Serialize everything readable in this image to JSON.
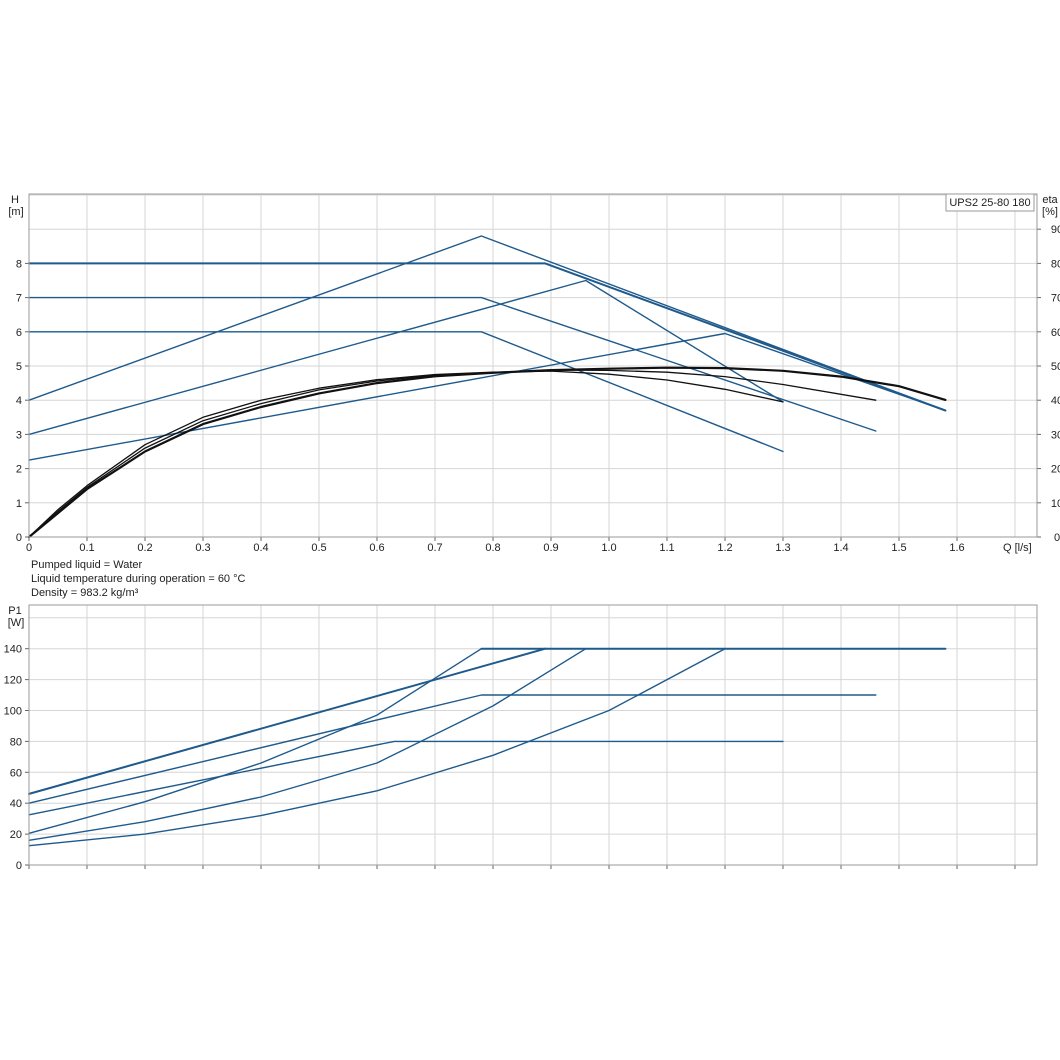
{
  "chart_data": [
    {
      "type": "line",
      "title": "",
      "model_label": "UPS2 25-80 180",
      "xlabel": "Q [l/s]",
      "ylabel_left": [
        "H",
        "[m]"
      ],
      "ylabel_right": [
        "eta",
        "[%]"
      ],
      "xlim": [
        0,
        1.7
      ],
      "ylim_left": [
        0,
        10
      ],
      "ylim_right": [
        0,
        100
      ],
      "x_ticks": [
        "0",
        "0.1",
        "0.2",
        "0.3",
        "0.4",
        "0.5",
        "0.6",
        "0.7",
        "0.8",
        "0.9",
        "1.0",
        "1.1",
        "1.2",
        "1.3",
        "1.4",
        "1.5",
        "1.6"
      ],
      "y_ticks_left": [
        "0",
        "1",
        "2",
        "3",
        "4",
        "5",
        "6",
        "7",
        "8"
      ],
      "y_ticks_right": [
        "0",
        "10",
        "20",
        "30",
        "40",
        "50",
        "60",
        "70",
        "80",
        "90"
      ],
      "grid": true,
      "series": [
        {
          "axis": "left",
          "color": "#1f5a8c",
          "width": 1.4,
          "x": [
            0,
            0.78,
            1.3
          ],
          "y": [
            6,
            6,
            2.5
          ]
        },
        {
          "axis": "left",
          "color": "#1f5a8c",
          "width": 1.4,
          "x": [
            0,
            0.78,
            1.46
          ],
          "y": [
            7,
            7,
            3.1
          ]
        },
        {
          "axis": "left",
          "color": "#1f5a8c",
          "width": 2.0,
          "x": [
            0,
            0.89,
            1.58
          ],
          "y": [
            8,
            8,
            3.7
          ]
        },
        {
          "axis": "left",
          "color": "#1f5a8c",
          "width": 1.4,
          "x": [
            0,
            0.78,
            1.58
          ],
          "y": [
            4,
            8.8,
            3.7
          ]
        },
        {
          "axis": "left",
          "color": "#1f5a8c",
          "width": 1.4,
          "x": [
            0,
            0.96,
            1.3
          ],
          "y": [
            3,
            7.5,
            3.95
          ]
        },
        {
          "axis": "left",
          "color": "#1f5a8c",
          "width": 1.4,
          "x": [
            0,
            1.2,
            1.58
          ],
          "y": [
            2.25,
            5.95,
            3.7
          ]
        },
        {
          "axis": "right",
          "color": "#111111",
          "width": 1.3,
          "x": [
            0,
            0.05,
            0.1,
            0.2,
            0.3,
            0.4,
            0.5,
            0.6,
            0.7,
            0.8,
            0.9,
            1.0,
            1.1,
            1.2,
            1.3
          ],
          "y": [
            0,
            8,
            15,
            27,
            35,
            40,
            43.5,
            46,
            47.5,
            48.2,
            48.5,
            47.6,
            45.9,
            43.2,
            39.5
          ]
        },
        {
          "axis": "right",
          "color": "#111111",
          "width": 1.3,
          "x": [
            0,
            0.05,
            0.1,
            0.2,
            0.3,
            0.4,
            0.5,
            0.6,
            0.7,
            0.8,
            0.9,
            1.0,
            1.1,
            1.2,
            1.3,
            1.46
          ],
          "y": [
            0,
            7.5,
            14.5,
            26,
            34,
            39,
            43,
            45.6,
            47.3,
            48.1,
            48.8,
            48.7,
            48.2,
            46.9,
            44.6,
            40
          ]
        },
        {
          "axis": "right",
          "color": "#111111",
          "width": 2.2,
          "x": [
            0,
            0.05,
            0.1,
            0.2,
            0.3,
            0.4,
            0.5,
            0.6,
            0.7,
            0.8,
            0.9,
            1.0,
            1.1,
            1.2,
            1.3,
            1.4,
            1.5,
            1.58
          ],
          "y": [
            0,
            7,
            14,
            25,
            33,
            38,
            42,
            45,
            47,
            48,
            48.8,
            49.2,
            49.5,
            49.4,
            48.6,
            46.9,
            44.1,
            40.1
          ]
        }
      ]
    },
    {
      "type": "line",
      "title": "",
      "xlabel": "",
      "ylabel": [
        "P1",
        "[W]"
      ],
      "xlim": [
        0,
        1.7
      ],
      "ylim": [
        0,
        160
      ],
      "y_ticks": [
        "0",
        "20",
        "40",
        "60",
        "80",
        "100",
        "120",
        "140"
      ],
      "grid": true,
      "series": [
        {
          "color": "#1f5a8c",
          "width": 1.4,
          "x": [
            0,
            0.2,
            0.4,
            0.6,
            0.78
          ],
          "y": [
            20.5,
            41,
            66,
            97,
            140
          ]
        },
        {
          "color": "#1f5a8c",
          "width": 1.4,
          "x": [
            0,
            0.2,
            0.4,
            0.6,
            0.8,
            0.96
          ],
          "y": [
            16,
            28,
            44,
            66,
            103,
            140
          ]
        },
        {
          "color": "#1f5a8c",
          "width": 1.4,
          "x": [
            0,
            0.2,
            0.4,
            0.6,
            0.8,
            1.0,
            1.2
          ],
          "y": [
            12.5,
            20,
            32,
            48,
            71,
            100,
            140
          ]
        },
        {
          "color": "#1f5a8c",
          "width": 2.0,
          "x": [
            0,
            0.89
          ],
          "y": [
            46,
            140
          ]
        },
        {
          "color": "#1f5a8c",
          "width": 2.0,
          "x": [
            0.78,
            1.58
          ],
          "y": [
            140,
            140
          ]
        },
        {
          "color": "#1f5a8c",
          "width": 1.4,
          "x": [
            0,
            0.78,
            1.46
          ],
          "y": [
            40,
            110,
            110
          ]
        },
        {
          "color": "#1f5a8c",
          "width": 1.4,
          "x": [
            0,
            0.63,
            1.3
          ],
          "y": [
            32.5,
            80,
            80
          ]
        }
      ]
    }
  ],
  "info": {
    "line1": "Pumped liquid = Water",
    "line2": "Liquid temperature during operation = 60 °C",
    "line3": "Density = 983.2 kg/m³"
  }
}
